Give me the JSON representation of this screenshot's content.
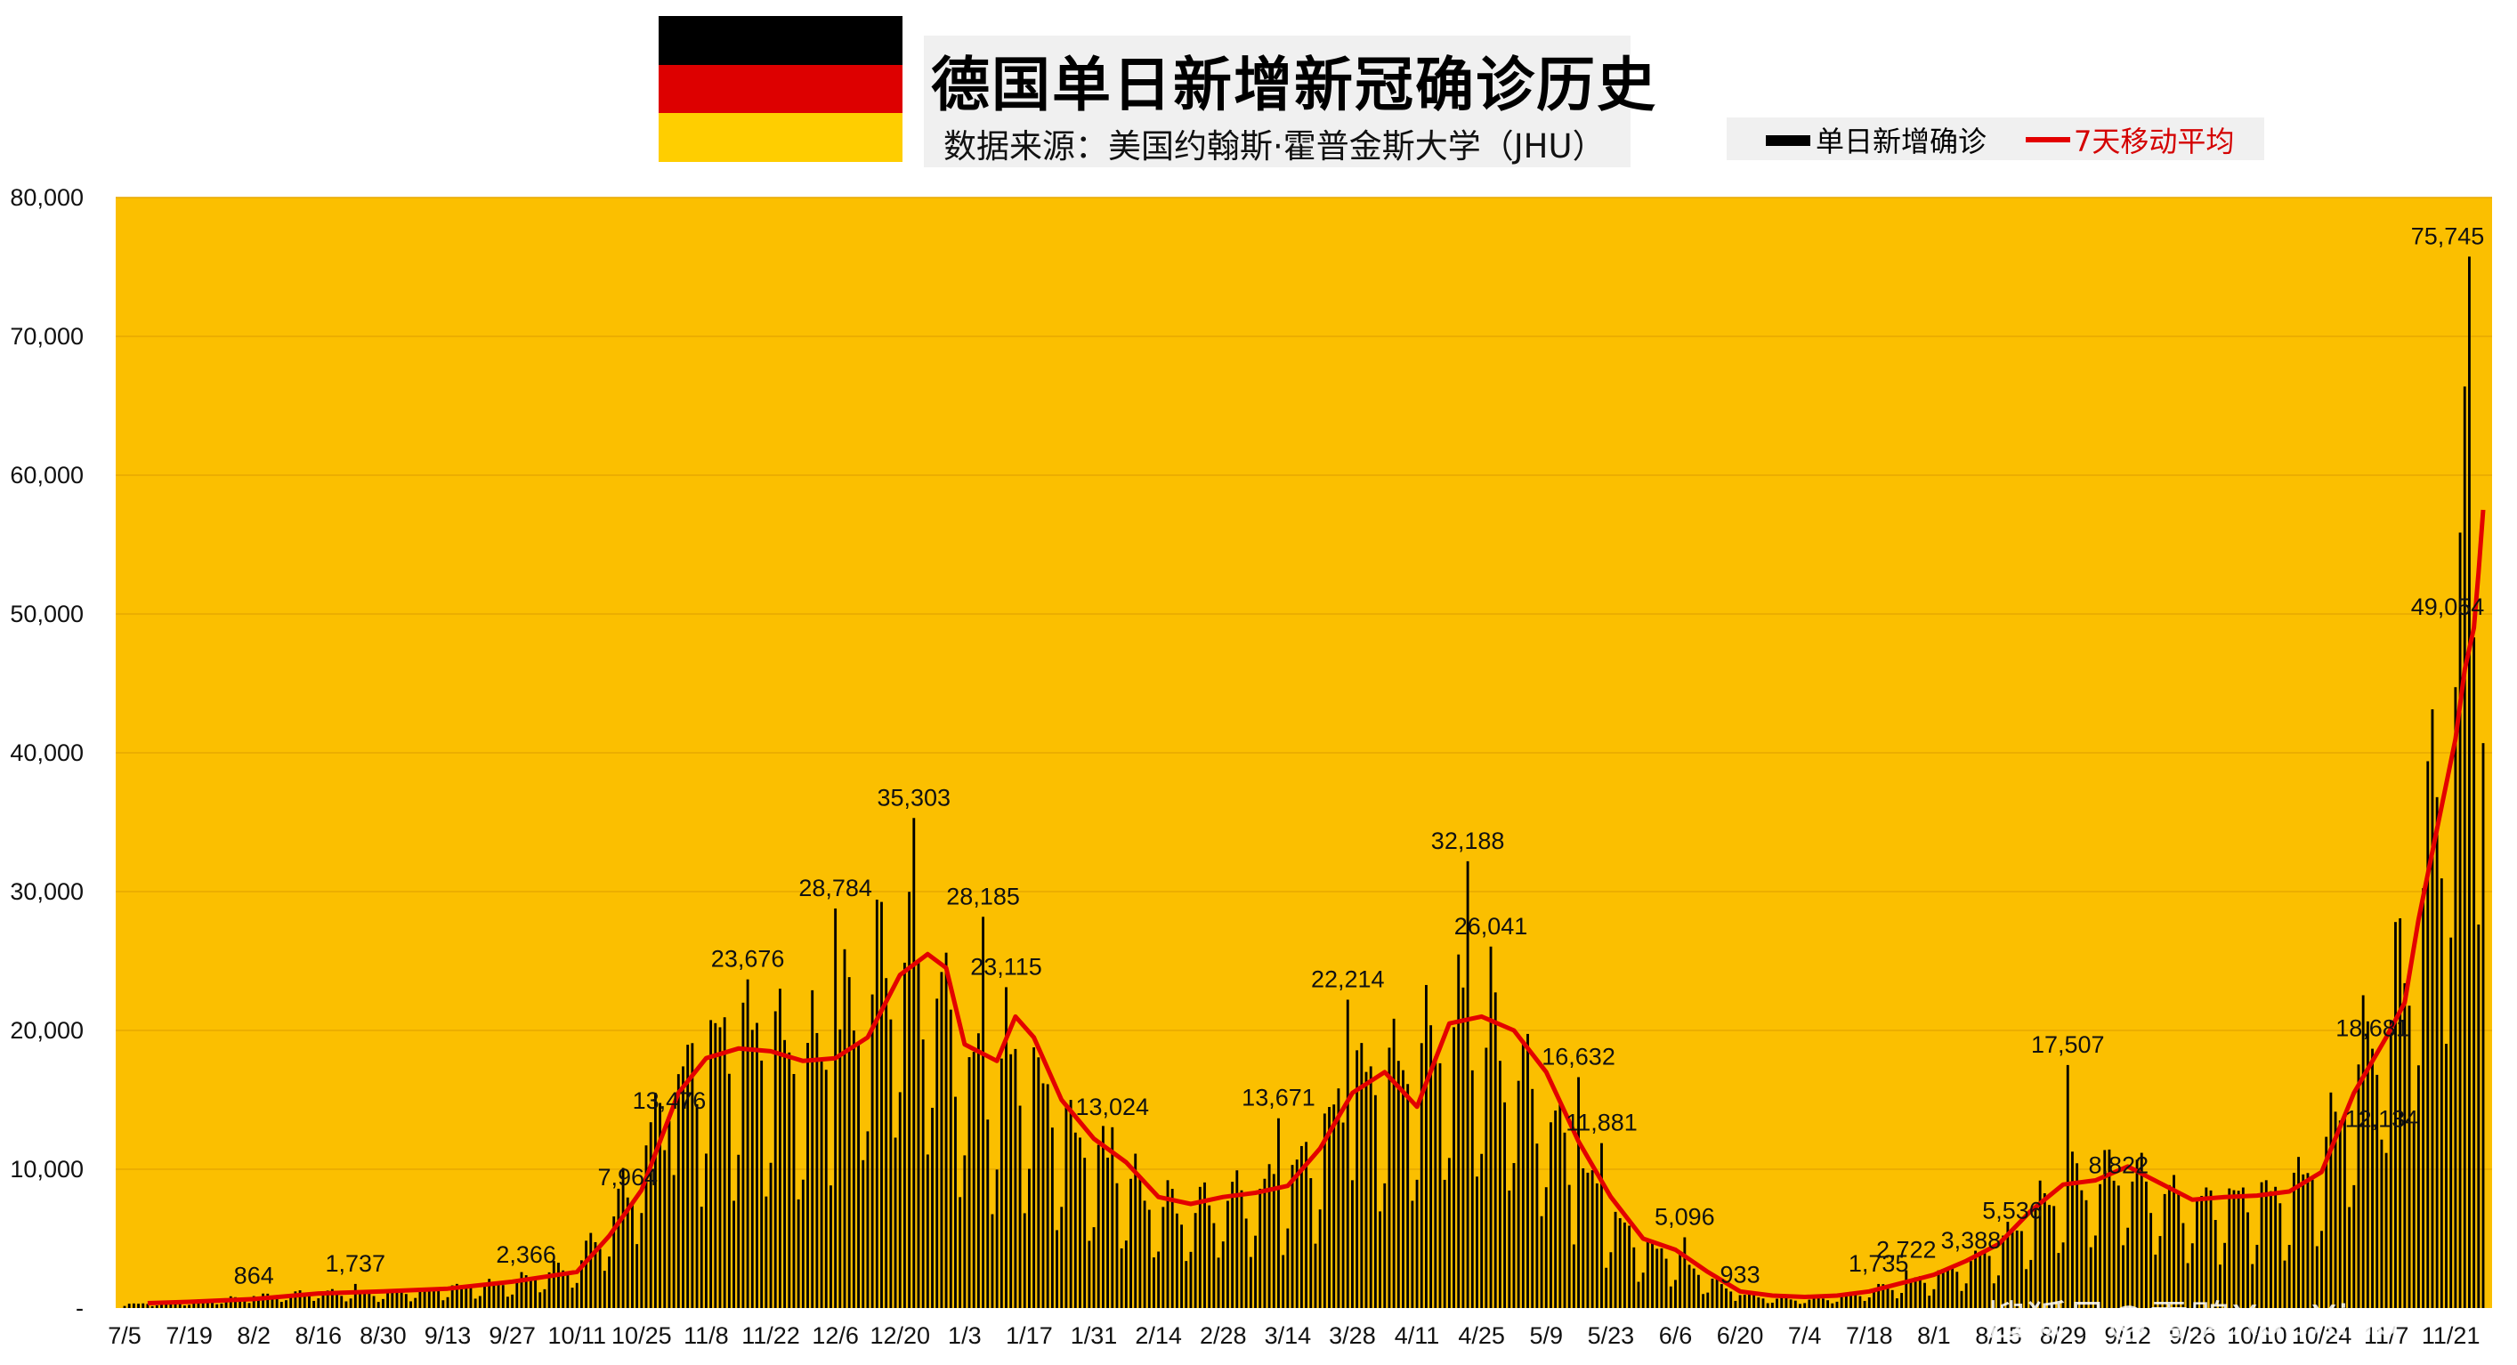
{
  "header": {
    "title": "德国单日新增新冠确诊历史",
    "source": "数据来源：美国约翰斯·霍普金斯大学（JHU）",
    "flag_colors": [
      "#000000",
      "#dd0000",
      "#ffce00"
    ]
  },
  "legend": {
    "bar_label": "单日新增确诊",
    "line_label": "7天移动平均"
  },
  "colors": {
    "plot_bg": "#fbbf00",
    "bars": "#000000",
    "line": "#e30000",
    "grid": "#e8a800"
  },
  "watermark": "搜狐号@雪鸮XueXiao",
  "chart_data": {
    "type": "bar",
    "title": "德国单日新增新冠确诊历史",
    "xlabel": "",
    "ylabel": "",
    "ylim": [
      0,
      80000
    ],
    "grid": true,
    "legend_position": "top-right",
    "y_ticks": [
      "-",
      "10,000",
      "20,000",
      "30,000",
      "40,000",
      "50,000",
      "60,000",
      "70,000",
      "80,000"
    ],
    "x_tick_labels": [
      "7/5",
      "7/19",
      "8/2",
      "8/16",
      "8/30",
      "9/13",
      "9/27",
      "10/11",
      "10/25",
      "11/8",
      "11/22",
      "12/6",
      "12/20",
      "1/3",
      "1/17",
      "1/31",
      "2/14",
      "2/28",
      "3/14",
      "3/28",
      "4/11",
      "4/25",
      "5/9",
      "5/23",
      "6/6",
      "6/20",
      "7/4",
      "7/18",
      "8/1",
      "8/15",
      "8/29",
      "9/12",
      "9/26",
      "10/10",
      "10/24",
      "11/7",
      "11/21"
    ],
    "x_tick_days": [
      0,
      14,
      28,
      42,
      56,
      70,
      84,
      98,
      112,
      126,
      140,
      154,
      168,
      182,
      196,
      210,
      224,
      238,
      252,
      266,
      280,
      294,
      308,
      322,
      336,
      350,
      364,
      378,
      392,
      406,
      420,
      434,
      448,
      462,
      476,
      490,
      504
    ],
    "total_days": 511,
    "series": [
      {
        "name": "单日新增确诊",
        "kind": "bar"
      },
      {
        "name": "7天移动平均",
        "kind": "line",
        "points": [
          [
            5,
            350
          ],
          [
            14,
            450
          ],
          [
            28,
            650
          ],
          [
            42,
            1050
          ],
          [
            56,
            1200
          ],
          [
            70,
            1400
          ],
          [
            84,
            1900
          ],
          [
            98,
            2600
          ],
          [
            105,
            5200
          ],
          [
            112,
            8500
          ],
          [
            120,
            15500
          ],
          [
            126,
            18000
          ],
          [
            133,
            18700
          ],
          [
            140,
            18500
          ],
          [
            147,
            17800
          ],
          [
            154,
            18000
          ],
          [
            161,
            19500
          ],
          [
            168,
            24000
          ],
          [
            174,
            25500
          ],
          [
            178,
            24500
          ],
          [
            182,
            19000
          ],
          [
            189,
            17800
          ],
          [
            193,
            21000
          ],
          [
            197,
            19500
          ],
          [
            203,
            15000
          ],
          [
            210,
            12200
          ],
          [
            217,
            10500
          ],
          [
            224,
            8000
          ],
          [
            231,
            7500
          ],
          [
            238,
            8000
          ],
          [
            245,
            8300
          ],
          [
            252,
            8800
          ],
          [
            259,
            11500
          ],
          [
            266,
            15500
          ],
          [
            273,
            17000
          ],
          [
            280,
            14500
          ],
          [
            287,
            20500
          ],
          [
            294,
            21000
          ],
          [
            301,
            20000
          ],
          [
            308,
            17000
          ],
          [
            315,
            12000
          ],
          [
            322,
            8000
          ],
          [
            329,
            5000
          ],
          [
            336,
            4200
          ],
          [
            343,
            2600
          ],
          [
            350,
            1200
          ],
          [
            357,
            900
          ],
          [
            364,
            800
          ],
          [
            371,
            900
          ],
          [
            378,
            1200
          ],
          [
            385,
            1800
          ],
          [
            392,
            2400
          ],
          [
            399,
            3400
          ],
          [
            406,
            4600
          ],
          [
            413,
            7000
          ],
          [
            420,
            8900
          ],
          [
            427,
            9200
          ],
          [
            434,
            10200
          ],
          [
            441,
            9000
          ],
          [
            448,
            7800
          ],
          [
            455,
            8000
          ],
          [
            462,
            8100
          ],
          [
            469,
            8400
          ],
          [
            476,
            9800
          ],
          [
            483,
            15500
          ],
          [
            490,
            19500
          ],
          [
            494,
            22000
          ],
          [
            497,
            28000
          ],
          [
            501,
            34500
          ],
          [
            505,
            41000
          ],
          [
            507,
            46000
          ],
          [
            509,
            49000
          ],
          [
            510,
            53000
          ],
          [
            511,
            57500
          ]
        ]
      }
    ],
    "annotations": [
      {
        "day": 28,
        "value": 864,
        "label": "864"
      },
      {
        "day": 50,
        "value": 1737,
        "label": "1,737"
      },
      {
        "day": 87,
        "value": 2366,
        "label": "2,366"
      },
      {
        "day": 109,
        "value": 7964,
        "label": "7,964"
      },
      {
        "day": 118,
        "value": 13476,
        "label": "13,476"
      },
      {
        "day": 135,
        "value": 23676,
        "label": "23,676"
      },
      {
        "day": 154,
        "value": 28784,
        "label": "28,784"
      },
      {
        "day": 171,
        "value": 35303,
        "label": "35,303"
      },
      {
        "day": 186,
        "value": 28185,
        "label": "28,185"
      },
      {
        "day": 191,
        "value": 23115,
        "label": "23,115"
      },
      {
        "day": 214,
        "value": 13024,
        "label": "13,024"
      },
      {
        "day": 250,
        "value": 13671,
        "label": "13,671"
      },
      {
        "day": 265,
        "value": 22214,
        "label": "22,214"
      },
      {
        "day": 291,
        "value": 32188,
        "label": "32,188"
      },
      {
        "day": 296,
        "value": 26041,
        "label": "26,041"
      },
      {
        "day": 315,
        "value": 16632,
        "label": "16,632"
      },
      {
        "day": 320,
        "value": 11881,
        "label": "11,881"
      },
      {
        "day": 338,
        "value": 5096,
        "label": "5,096"
      },
      {
        "day": 350,
        "value": 933,
        "label": "933"
      },
      {
        "day": 380,
        "value": 1735,
        "label": "1,735"
      },
      {
        "day": 386,
        "value": 2722,
        "label": "2,722"
      },
      {
        "day": 400,
        "value": 3388,
        "label": "3,388"
      },
      {
        "day": 409,
        "value": 5536,
        "label": "5,536"
      },
      {
        "day": 421,
        "value": 17507,
        "label": "17,507"
      },
      {
        "day": 432,
        "value": 8822,
        "label": "8,822"
      },
      {
        "day": 487,
        "value": 18681,
        "label": "18,681"
      },
      {
        "day": 489,
        "value": 12134,
        "label": "12,134"
      },
      {
        "day": 508,
        "value": 75745,
        "label": "75,745"
      },
      {
        "day": 508,
        "value": 49054,
        "label": "49,054"
      }
    ],
    "daily_envelope": [
      [
        0,
        300
      ],
      [
        14,
        500
      ],
      [
        28,
        900
      ],
      [
        42,
        1300
      ],
      [
        56,
        1200
      ],
      [
        70,
        1600
      ],
      [
        84,
        2100
      ],
      [
        98,
        3600
      ],
      [
        105,
        7000
      ],
      [
        112,
        12500
      ],
      [
        118,
        17000
      ],
      [
        126,
        21000
      ],
      [
        133,
        22000
      ],
      [
        140,
        22000
      ],
      [
        147,
        20000
      ],
      [
        154,
        22000
      ],
      [
        161,
        26000
      ],
      [
        168,
        30000
      ],
      [
        174,
        27500
      ],
      [
        178,
        24000
      ],
      [
        182,
        20000
      ],
      [
        189,
        18500
      ],
      [
        196,
        19500
      ],
      [
        203,
        15000
      ],
      [
        210,
        12500
      ],
      [
        217,
        10500
      ],
      [
        224,
        8500
      ],
      [
        231,
        8000
      ],
      [
        238,
        9000
      ],
      [
        245,
        9500
      ],
      [
        252,
        10500
      ],
      [
        259,
        13500
      ],
      [
        266,
        18500
      ],
      [
        273,
        19000
      ],
      [
        280,
        20000
      ],
      [
        287,
        23000
      ],
      [
        294,
        22500
      ],
      [
        301,
        20000
      ],
      [
        308,
        16000
      ],
      [
        315,
        11500
      ],
      [
        322,
        7500
      ],
      [
        329,
        5000
      ],
      [
        336,
        4200
      ],
      [
        343,
        2400
      ],
      [
        350,
        1100
      ],
      [
        357,
        800
      ],
      [
        364,
        700
      ],
      [
        371,
        850
      ],
      [
        378,
        1400
      ],
      [
        385,
        2000
      ],
      [
        392,
        2600
      ],
      [
        399,
        3600
      ],
      [
        406,
        5000
      ],
      [
        413,
        7500
      ],
      [
        420,
        10000
      ],
      [
        427,
        10500
      ],
      [
        434,
        11000
      ],
      [
        441,
        9500
      ],
      [
        448,
        8500
      ],
      [
        455,
        8800
      ],
      [
        462,
        9000
      ],
      [
        469,
        9500
      ],
      [
        476,
        12000
      ],
      [
        483,
        19000
      ],
      [
        490,
        23000
      ],
      [
        494,
        28000
      ],
      [
        497,
        34000
      ],
      [
        501,
        42000
      ],
      [
        505,
        52000
      ],
      [
        507,
        62000
      ],
      [
        509,
        70000
      ],
      [
        511,
        74000
      ]
    ]
  }
}
